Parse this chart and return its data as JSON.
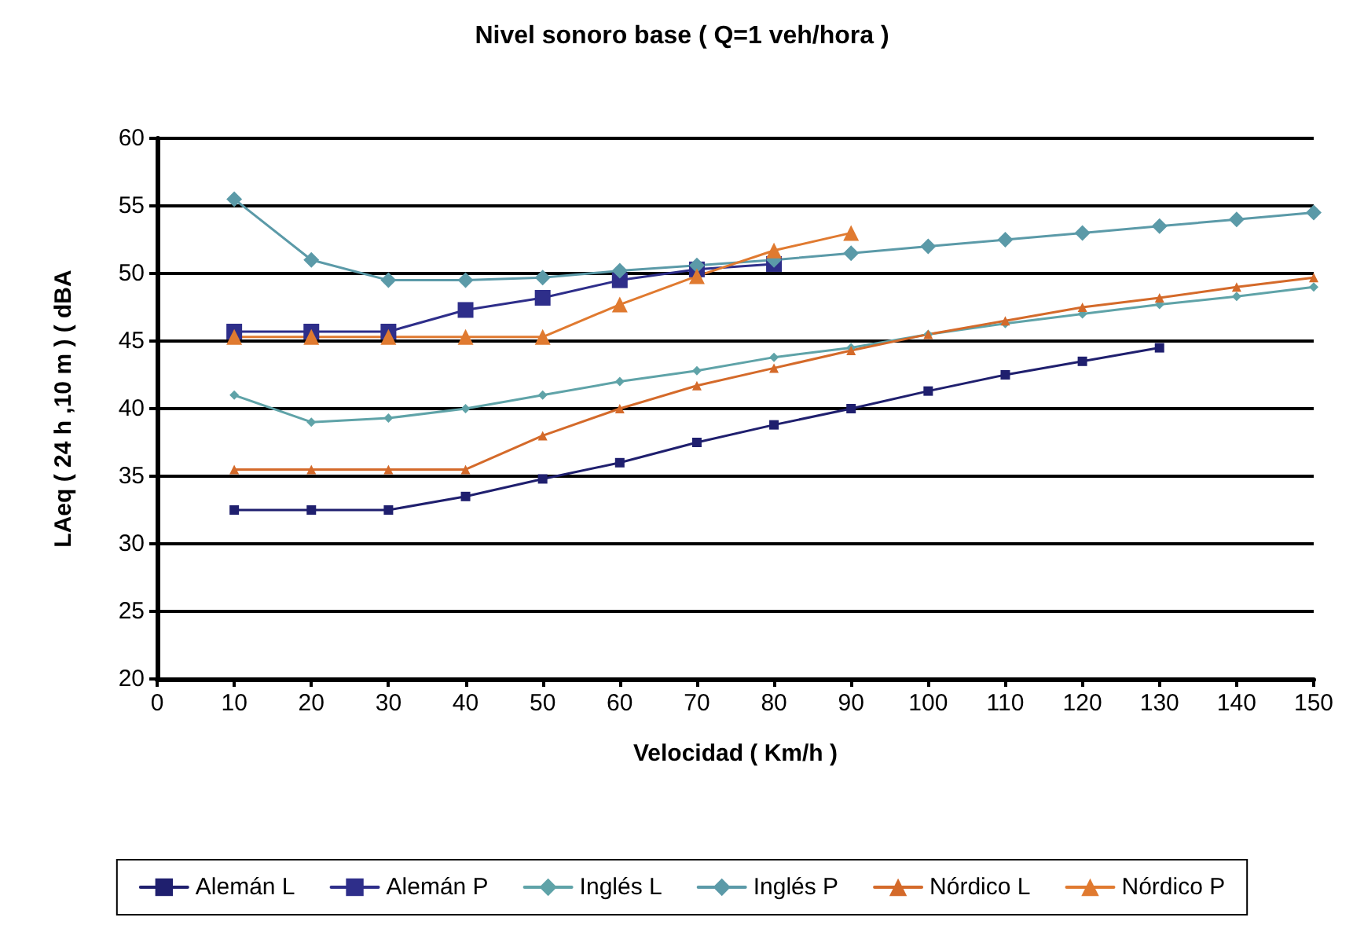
{
  "chart_data": {
    "type": "line",
    "title": "Nivel sonoro base ( Q=1 veh/hora )",
    "xlabel": "Velocidad ( Km/h )",
    "ylabel": "LAeq ( 24 h ,10 m ) ( dBA",
    "x": [
      10,
      20,
      30,
      40,
      50,
      60,
      70,
      80,
      90,
      100,
      110,
      120,
      130,
      140,
      150
    ],
    "series": [
      {
        "name": "Alemán L",
        "color": "#1f1f6e",
        "marker": "square",
        "values": [
          32.5,
          32.5,
          32.5,
          33.5,
          34.8,
          36,
          37.5,
          38.8,
          40,
          41.3,
          42.5,
          43.5,
          44.5,
          null,
          null
        ]
      },
      {
        "name": "Alemán P",
        "color": "#2e2e8a",
        "marker": "square",
        "values": [
          45.7,
          45.7,
          45.7,
          47.3,
          48.2,
          49.5,
          50.3,
          50.7,
          null,
          null,
          null,
          null,
          null,
          null,
          null
        ]
      },
      {
        "name": "Inglés L",
        "color": "#5fa3a8",
        "marker": "diamond",
        "values": [
          41,
          39,
          39.3,
          40,
          41,
          42,
          42.8,
          43.8,
          44.5,
          45.5,
          46.3,
          47,
          47.7,
          48.3,
          49
        ]
      },
      {
        "name": "Inglés P",
        "color": "#5b9aa8",
        "marker": "diamond",
        "values": [
          55.5,
          51,
          49.5,
          49.5,
          49.7,
          50.2,
          50.6,
          51,
          51.5,
          52,
          52.5,
          53,
          53.5,
          54,
          54.5
        ]
      },
      {
        "name": "Nórdico L",
        "color": "#d46a2a",
        "marker": "triangle",
        "values": [
          35.5,
          35.5,
          35.5,
          35.5,
          38,
          40,
          41.7,
          43,
          44.3,
          45.5,
          46.5,
          47.5,
          48.2,
          49,
          49.7
        ]
      },
      {
        "name": "Nórdico P",
        "color": "#e07a30",
        "marker": "triangle",
        "values": [
          45.3,
          45.3,
          45.3,
          45.3,
          45.3,
          47.7,
          49.8,
          51.7,
          53,
          null,
          null,
          null,
          null,
          null,
          null
        ]
      }
    ],
    "xlim": [
      0,
      150
    ],
    "xticks": [
      0,
      10,
      20,
      30,
      40,
      50,
      60,
      70,
      80,
      90,
      100,
      110,
      120,
      130,
      140,
      150
    ],
    "ylim": [
      20,
      60
    ],
    "yticks": [
      20,
      25,
      30,
      35,
      40,
      45,
      50,
      55,
      60
    ],
    "grid": "y",
    "legend": "bottom",
    "line_style": "solid"
  }
}
